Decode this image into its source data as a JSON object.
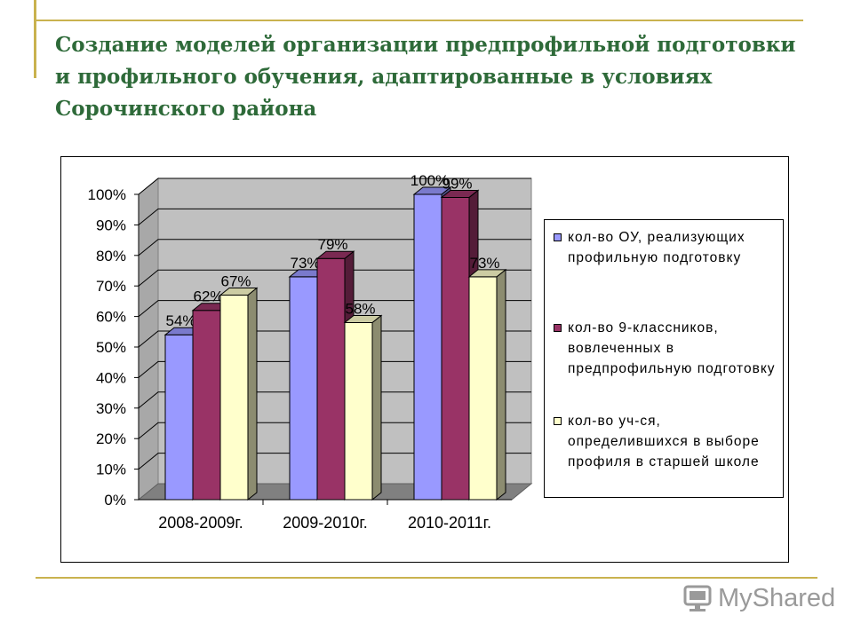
{
  "slide": {
    "title": "Создание моделей организации предпрофильной подготовки и профильного обучения, адаптированные в условиях Сорочинского района"
  },
  "logo": {
    "text": "MyShared",
    "icon": "monitor-icon"
  },
  "chart_data": {
    "type": "bar",
    "style": "3d-clustered-column",
    "categories": [
      "2008-2009г.",
      "2009-2010г.",
      "2010-2011г."
    ],
    "series": [
      {
        "name": "кол-во ОУ, реализующих профильную подготовку",
        "values": [
          54,
          73,
          100
        ],
        "labels": [
          "54%",
          "73%",
          "100%"
        ],
        "color": "#9999ff"
      },
      {
        "name": "кол-во 9-классников, вовлеченных в предпрофильную подготовку",
        "values": [
          62,
          79,
          99
        ],
        "labels": [
          "62%",
          "79%",
          "99%"
        ],
        "color": "#993366"
      },
      {
        "name": "кол-во уч-ся, определившихся в выборе профиля в старшей школе",
        "values": [
          67,
          58,
          73
        ],
        "labels": [
          "67%",
          "58%",
          "73%"
        ],
        "color": "#ffffcc"
      }
    ],
    "y_ticks": [
      "0%",
      "10%",
      "20%",
      "30%",
      "40%",
      "50%",
      "60%",
      "70%",
      "80%",
      "90%",
      "100%"
    ],
    "ylim": [
      0,
      100
    ],
    "grid": true,
    "legend_position": "right",
    "colors": {
      "wall": "#c0c0c0",
      "floor": "#808080",
      "grid": "#000000"
    }
  }
}
